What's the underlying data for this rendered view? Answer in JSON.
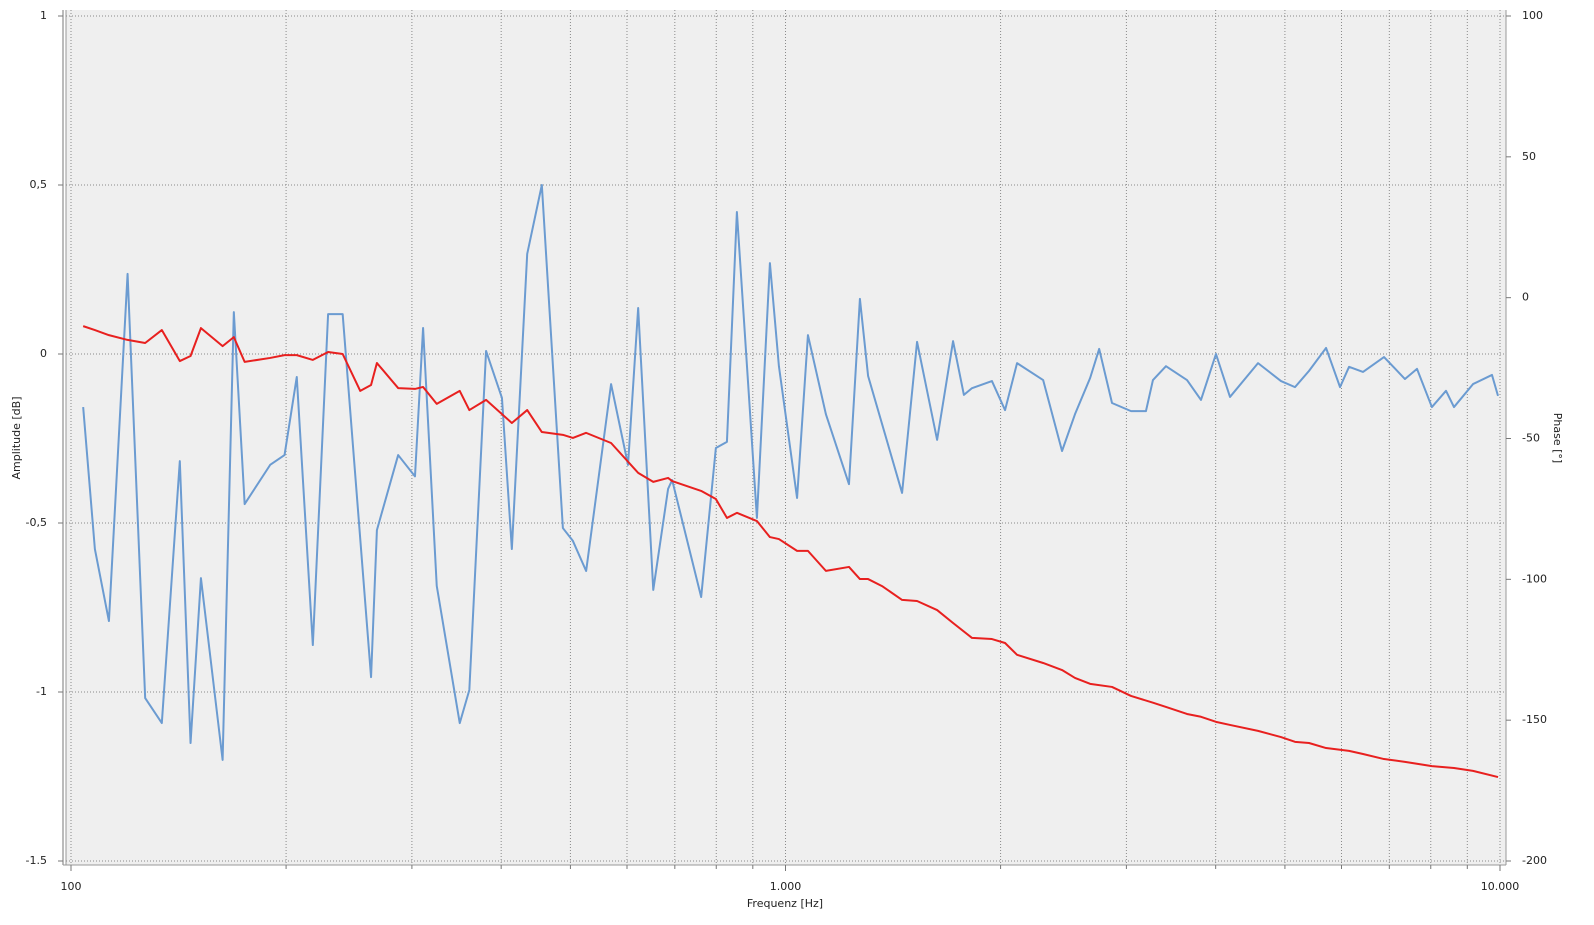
{
  "chart_data": {
    "type": "line",
    "x_label": "Frequenz [Hz]",
    "y_label": "Amplitude [dB]",
    "y2_label": "Phase [°]",
    "xscale": "log",
    "grid": true,
    "xlim": [
      100,
      10000
    ],
    "xticks": [
      {
        "value": 100,
        "label": "100"
      },
      {
        "value": 1000,
        "label": "1.000"
      },
      {
        "value": 10000,
        "label": "10.000"
      }
    ],
    "xminor": [
      200,
      300,
      400,
      500,
      600,
      700,
      800,
      900,
      2000,
      3000,
      4000,
      5000,
      6000,
      7000,
      8000,
      9000
    ],
    "ylim": [
      -1.5,
      1
    ],
    "yticks": [
      {
        "value": -1.5,
        "label": "-1.5"
      },
      -1,
      {
        "value": -0.5,
        "label": "-0,5"
      },
      0,
      {
        "value": 0.5,
        "label": "0,5"
      },
      1
    ],
    "y2lim": [
      -200,
      100
    ],
    "y2ticks": [
      -200,
      -150,
      -100,
      -50,
      0,
      50,
      100
    ],
    "series": [
      {
        "color": "#6b9bd1",
        "axis": "y",
        "x": [
          104,
          108,
          113,
          120,
          127,
          134,
          142,
          147,
          152,
          163,
          169,
          175,
          190,
          199,
          207,
          218,
          229,
          240,
          263,
          268,
          287,
          303,
          311,
          325,
          350,
          361,
          381,
          401,
          414,
          435,
          456,
          488,
          504,
          526,
          570,
          602,
          622,
          653,
          685,
          694,
          762,
          799,
          828,
          855,
          912,
          951,
          979,
          1038,
          1075,
          1139,
          1227,
          1271,
          1305,
          1456,
          1528,
          1630,
          1716,
          1777,
          1824,
          1945,
          2029,
          2109,
          2294,
          2438,
          2542,
          2669,
          2748,
          2864,
          3045,
          3195,
          3268,
          3408,
          3647,
          3815,
          4004,
          4189,
          4585,
          4937,
          5165,
          5404,
          5709,
          5972,
          6148,
          6431,
          6881,
          7362,
          7653,
          8029,
          8403,
          8622,
          9167,
          9745,
          9936
        ],
        "values": [
          -0.157,
          -0.577,
          -0.79,
          0.237,
          -1.018,
          -1.092,
          -0.317,
          -1.151,
          -0.663,
          -1.201,
          0.124,
          -0.444,
          -0.328,
          -0.299,
          -0.068,
          -0.861,
          0.118,
          0.118,
          -0.956,
          -0.521,
          -0.299,
          -0.362,
          0.077,
          -0.686,
          -1.092,
          -0.994,
          0.009,
          -0.13,
          -0.577,
          0.296,
          0.5,
          -0.515,
          -0.553,
          -0.642,
          -0.089,
          -0.328,
          0.136,
          -0.698,
          -0.399,
          -0.373,
          -0.719,
          -0.278,
          -0.26,
          0.42,
          -0.485,
          0.269,
          -0.036,
          -0.426,
          0.056,
          -0.178,
          -0.385,
          0.163,
          -0.065,
          -0.411,
          0.036,
          -0.254,
          0.038,
          -0.121,
          -0.101,
          -0.08,
          -0.166,
          -0.027,
          -0.077,
          -0.287,
          -0.178,
          -0.071,
          0.015,
          -0.145,
          -0.169,
          -0.169,
          -0.077,
          -0.036,
          -0.077,
          -0.136,
          0,
          -0.127,
          -0.027,
          -0.08,
          -0.098,
          -0.05,
          0.018,
          -0.098,
          -0.038,
          -0.053,
          -0.009,
          -0.074,
          -0.044,
          -0.157,
          -0.109,
          -0.157,
          -0.089,
          -0.062,
          -0.124
        ]
      },
      {
        "color": "#e8201f",
        "axis": "y2",
        "x": [
          104,
          108,
          113,
          120,
          127,
          134,
          142,
          147,
          152,
          163,
          169,
          175,
          190,
          199,
          207,
          218,
          229,
          240,
          254,
          263,
          268,
          287,
          303,
          311,
          325,
          350,
          361,
          381,
          414,
          435,
          456,
          488,
          504,
          526,
          570,
          622,
          653,
          685,
          694,
          762,
          799,
          828,
          855,
          912,
          951,
          979,
          1038,
          1075,
          1139,
          1227,
          1271,
          1305,
          1365,
          1456,
          1528,
          1630,
          1716,
          1824,
          1945,
          2029,
          2109,
          2294,
          2438,
          2542,
          2669,
          2864,
          3045,
          3268,
          3408,
          3647,
          3815,
          4004,
          4189,
          4585,
          4937,
          5165,
          5404,
          5709,
          6148,
          6431,
          6881,
          7362,
          8029,
          8622,
          9167,
          9936
        ],
        "values": [
          -10.1,
          -11.5,
          -13.3,
          -15.0,
          -16.1,
          -11.5,
          -22.5,
          -20.7,
          -10.8,
          -17.2,
          -14.0,
          -22.8,
          -21.4,
          -20.4,
          -20.4,
          -22.1,
          -19.3,
          -20.0,
          -33.1,
          -31.0,
          -23.2,
          -32.1,
          -32.4,
          -31.7,
          -37.7,
          -33.1,
          -39.9,
          -36.3,
          -44.5,
          -39.9,
          -47.7,
          -48.7,
          -49.8,
          -48.0,
          -51.6,
          -62.2,
          -65.4,
          -64.0,
          -65.1,
          -68.6,
          -71.5,
          -78.2,
          -76.4,
          -79.3,
          -85.0,
          -85.7,
          -89.9,
          -89.9,
          -97.0,
          -95.6,
          -99.9,
          -99.9,
          -102.4,
          -107.3,
          -107.7,
          -110.9,
          -115.5,
          -120.8,
          -121.2,
          -122.6,
          -126.8,
          -129.7,
          -132.2,
          -135.0,
          -137.1,
          -138.2,
          -141.4,
          -143.8,
          -145.3,
          -147.8,
          -148.8,
          -150.6,
          -151.7,
          -153.8,
          -156.0,
          -157.7,
          -158.1,
          -159.9,
          -160.9,
          -162.0,
          -163.8,
          -164.8,
          -166.3,
          -167.0,
          -168.0,
          -170.2
        ]
      }
    ]
  }
}
